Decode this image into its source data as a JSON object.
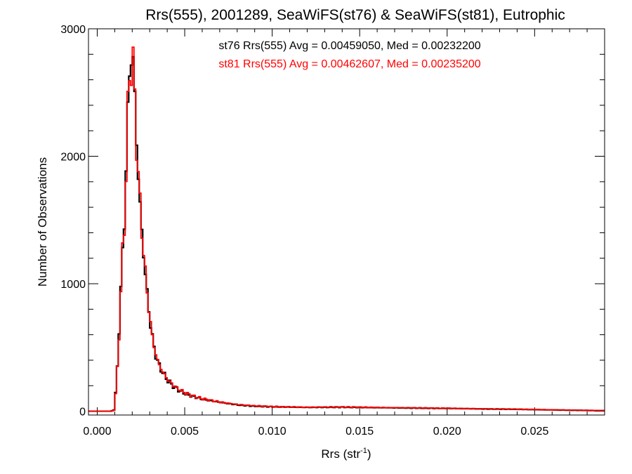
{
  "chart_data": {
    "type": "line",
    "title": "Rrs(555), 2001289, SeaWiFS(st76) & SeaWiFS(st81), Eutrophic",
    "xlabel_base": "Rrs (str",
    "xlabel_sup": "-1",
    "xlabel_close": ")",
    "ylabel": "Number of Observations",
    "xlim": [
      -0.0005,
      0.029
    ],
    "ylim": [
      -30,
      3000
    ],
    "x_ticks": [
      {
        "value": 0.0,
        "label": "0.000"
      },
      {
        "value": 0.005,
        "label": "0.005"
      },
      {
        "value": 0.01,
        "label": "0.010"
      },
      {
        "value": 0.015,
        "label": "0.015"
      },
      {
        "value": 0.02,
        "label": "0.020"
      },
      {
        "value": 0.025,
        "label": "0.025"
      }
    ],
    "y_ticks": [
      {
        "value": 0,
        "label": "0"
      },
      {
        "value": 1000,
        "label": "1000"
      },
      {
        "value": 2000,
        "label": "2000"
      },
      {
        "value": 3000,
        "label": "3000"
      }
    ],
    "x_minor_step": 0.001,
    "y_minor_step": 200,
    "annotations": [
      {
        "text": "st76 Rrs(555) Avg = 0.00459050, Med = 0.00232200",
        "color": "#000000"
      },
      {
        "text": "st81 Rrs(555) Avg = 0.00462607, Med = 0.00235200",
        "color": "#ff0000"
      }
    ],
    "series": [
      {
        "color": "#000000",
        "points": [
          [
            -0.0005,
            0
          ],
          [
            0.0008,
            0
          ],
          [
            0.00095,
            10
          ],
          [
            0.0011,
            200
          ],
          [
            0.00125,
            650
          ],
          [
            0.0014,
            1100
          ],
          [
            0.00155,
            1500
          ],
          [
            0.0017,
            2100
          ],
          [
            0.0018,
            2550
          ],
          [
            0.0019,
            2780
          ],
          [
            0.002,
            2800
          ],
          [
            0.0021,
            2650
          ],
          [
            0.0022,
            2300
          ],
          [
            0.0023,
            1950
          ],
          [
            0.0025,
            1500
          ],
          [
            0.0027,
            1150
          ],
          [
            0.0029,
            850
          ],
          [
            0.0031,
            620
          ],
          [
            0.0033,
            460
          ],
          [
            0.0035,
            370
          ],
          [
            0.0038,
            290
          ],
          [
            0.0041,
            230
          ],
          [
            0.0045,
            180
          ],
          [
            0.005,
            140
          ],
          [
            0.0055,
            115
          ],
          [
            0.006,
            95
          ],
          [
            0.007,
            70
          ],
          [
            0.008,
            50
          ],
          [
            0.009,
            40
          ],
          [
            0.01,
            35
          ],
          [
            0.012,
            30
          ],
          [
            0.014,
            32
          ],
          [
            0.016,
            28
          ],
          [
            0.018,
            25
          ],
          [
            0.02,
            22
          ],
          [
            0.022,
            18
          ],
          [
            0.024,
            15
          ],
          [
            0.026,
            10
          ],
          [
            0.028,
            6
          ],
          [
            0.029,
            4
          ]
        ]
      },
      {
        "color": "#ff0000",
        "points": [
          [
            -0.0005,
            0
          ],
          [
            0.0008,
            0
          ],
          [
            0.00095,
            8
          ],
          [
            0.0011,
            190
          ],
          [
            0.00125,
            620
          ],
          [
            0.0014,
            1080
          ],
          [
            0.00155,
            1480
          ],
          [
            0.0017,
            2080
          ],
          [
            0.0018,
            2520
          ],
          [
            0.0019,
            2760
          ],
          [
            0.002,
            2760
          ],
          [
            0.0021,
            2620
          ],
          [
            0.0022,
            2290
          ],
          [
            0.0023,
            1960
          ],
          [
            0.0025,
            1510
          ],
          [
            0.0027,
            1160
          ],
          [
            0.0029,
            860
          ],
          [
            0.0031,
            630
          ],
          [
            0.0033,
            470
          ],
          [
            0.0035,
            375
          ],
          [
            0.0038,
            295
          ],
          [
            0.0041,
            235
          ],
          [
            0.0045,
            185
          ],
          [
            0.005,
            145
          ],
          [
            0.0055,
            118
          ],
          [
            0.006,
            98
          ],
          [
            0.007,
            72
          ],
          [
            0.008,
            52
          ],
          [
            0.009,
            42
          ],
          [
            0.01,
            36
          ],
          [
            0.012,
            31
          ],
          [
            0.014,
            33
          ],
          [
            0.016,
            29
          ],
          [
            0.018,
            26
          ],
          [
            0.02,
            23
          ],
          [
            0.022,
            19
          ],
          [
            0.024,
            16
          ],
          [
            0.026,
            11
          ],
          [
            0.028,
            7
          ],
          [
            0.029,
            5
          ]
        ]
      }
    ]
  }
}
